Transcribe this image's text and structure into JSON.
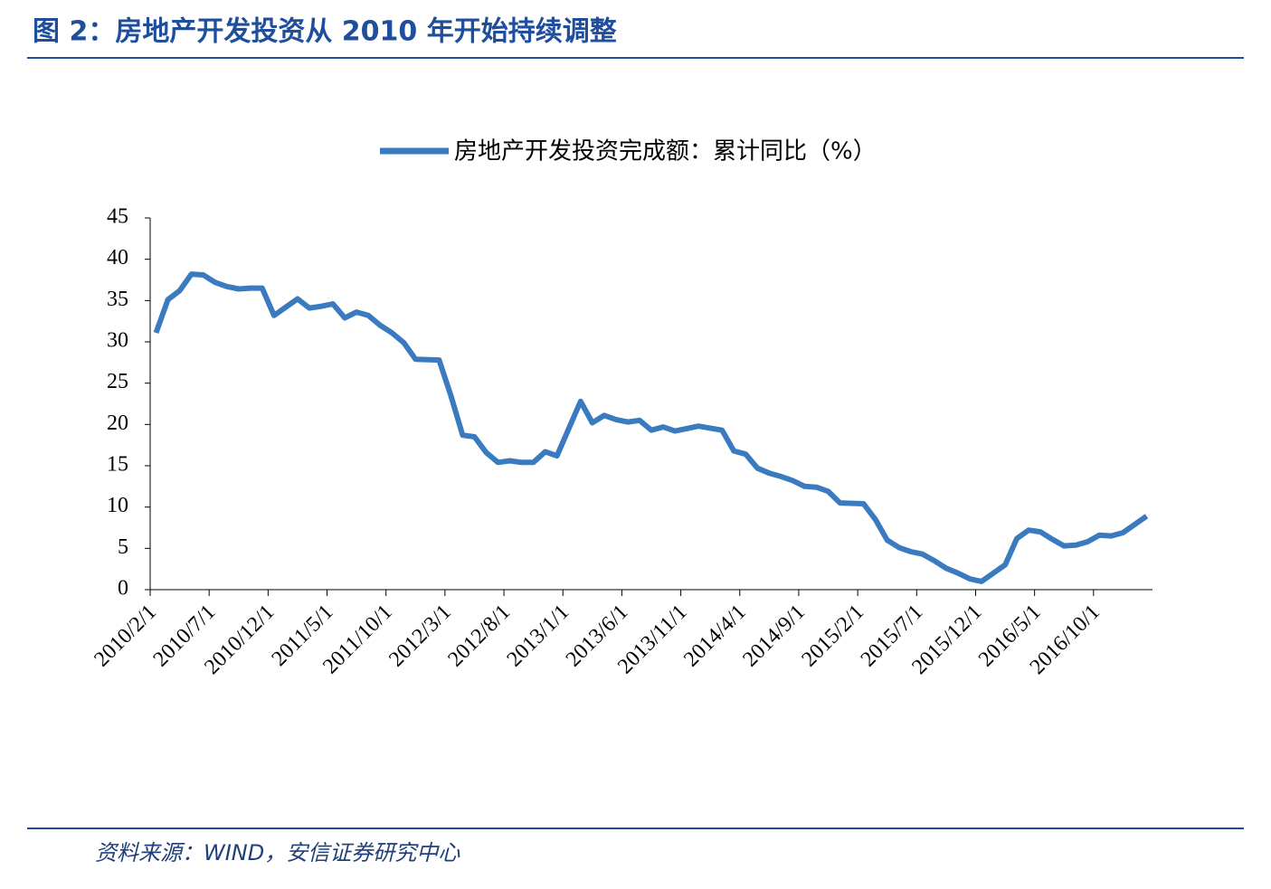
{
  "header": {
    "title": "图 2：房地产开发投资从 2010 年开始持续调整"
  },
  "chart_data": {
    "type": "line",
    "x": [
      "2010/2/1",
      "2010/3/1",
      "2010/4/1",
      "2010/5/1",
      "2010/6/1",
      "2010/7/1",
      "2010/8/1",
      "2010/9/1",
      "2010/10/1",
      "2010/11/1",
      "2010/12/1",
      "2011/2/1",
      "2011/3/1",
      "2011/4/1",
      "2011/5/1",
      "2011/6/1",
      "2011/7/1",
      "2011/8/1",
      "2011/9/1",
      "2011/10/1",
      "2011/11/1",
      "2011/12/1",
      "2012/2/1",
      "2012/3/1",
      "2012/4/1",
      "2012/5/1",
      "2012/6/1",
      "2012/7/1",
      "2012/8/1",
      "2012/9/1",
      "2012/10/1",
      "2012/11/1",
      "2012/12/1",
      "2013/2/1",
      "2013/3/1",
      "2013/4/1",
      "2013/5/1",
      "2013/6/1",
      "2013/7/1",
      "2013/8/1",
      "2013/9/1",
      "2013/10/1",
      "2013/11/1",
      "2013/12/1",
      "2014/2/1",
      "2014/3/1",
      "2014/4/1",
      "2014/5/1",
      "2014/6/1",
      "2014/7/1",
      "2014/8/1",
      "2014/9/1",
      "2014/10/1",
      "2014/11/1",
      "2014/12/1",
      "2015/2/1",
      "2015/3/1",
      "2015/4/1",
      "2015/5/1",
      "2015/6/1",
      "2015/7/1",
      "2015/8/1",
      "2015/9/1",
      "2015/10/1",
      "2015/11/1",
      "2015/12/1",
      "2016/2/1",
      "2016/3/1",
      "2016/4/1",
      "2016/5/1",
      "2016/6/1",
      "2016/7/1",
      "2016/8/1",
      "2016/9/1",
      "2016/10/1",
      "2016/11/1",
      "2016/12/1",
      "2017/2/1"
    ],
    "series": [
      {
        "name": "房地产开发投资完成额：累计同比（%）",
        "color": "#3a7abf",
        "values": [
          31.1,
          35.1,
          36.2,
          38.2,
          38.1,
          37.2,
          36.7,
          36.4,
          36.5,
          36.5,
          33.2,
          35.2,
          34.1,
          34.3,
          34.6,
          32.9,
          33.6,
          33.2,
          32.0,
          31.1,
          29.9,
          27.9,
          27.8,
          23.5,
          18.7,
          18.5,
          16.6,
          15.4,
          15.6,
          15.4,
          15.4,
          16.7,
          16.2,
          22.8,
          20.2,
          21.1,
          20.6,
          20.3,
          20.5,
          19.3,
          19.7,
          19.2,
          19.5,
          19.8,
          19.3,
          16.8,
          16.4,
          14.7,
          14.1,
          13.7,
          13.2,
          12.5,
          12.4,
          11.9,
          10.5,
          10.4,
          8.5,
          6.0,
          5.1,
          4.6,
          4.3,
          3.5,
          2.6,
          2.0,
          1.3,
          1.0,
          3.0,
          6.2,
          7.2,
          7.0,
          6.1,
          5.3,
          5.4,
          5.8,
          6.6,
          6.5,
          6.9,
          8.9
        ]
      }
    ],
    "xlim": [
      "2010/2/1",
      "2017/3/1"
    ],
    "xticks": [
      "2010/2/1",
      "2010/7/1",
      "2010/12/1",
      "2011/5/1",
      "2011/10/1",
      "2012/3/1",
      "2012/8/1",
      "2013/1/1",
      "2013/6/1",
      "2013/11/1",
      "2014/4/1",
      "2014/9/1",
      "2015/2/1",
      "2015/7/1",
      "2015/12/1",
      "2016/5/1",
      "2016/10/1"
    ],
    "ylim": [
      0,
      45
    ],
    "yticks": [
      0,
      5,
      10,
      15,
      20,
      25,
      30,
      35,
      40,
      45
    ],
    "legend": "top"
  },
  "footer": {
    "source": "资料来源：WIND，安信证券研究中心"
  }
}
